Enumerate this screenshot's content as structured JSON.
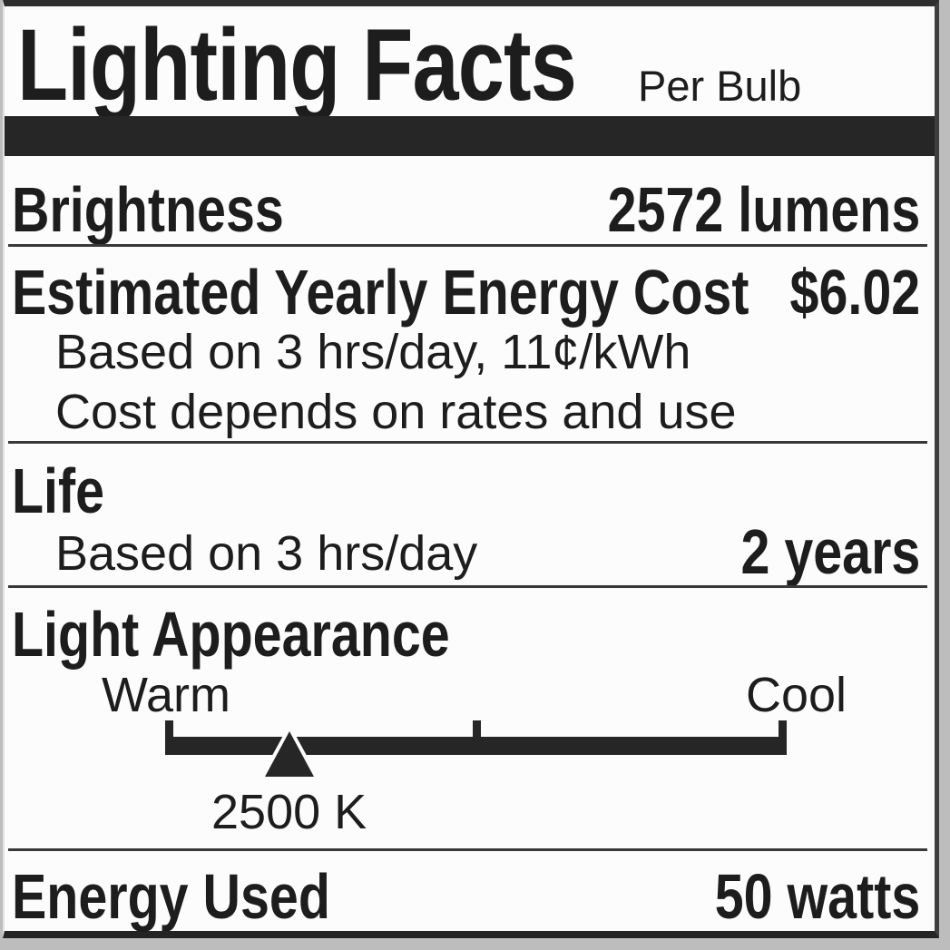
{
  "label": {
    "title": "Lighting Facts",
    "subtitle": "Per Bulb",
    "brightness": {
      "label": "Brightness",
      "value": "2572 lumens"
    },
    "energy_cost": {
      "label": "Estimated Yearly Energy Cost",
      "value": "$6.02",
      "note_basis": "Based on 3 hrs/day, 11¢/kWh",
      "note_disclaimer": "Cost depends on rates and use"
    },
    "life": {
      "label": "Life",
      "note": "Based on 3 hrs/day",
      "value": "2 years"
    },
    "light_appearance": {
      "label": "Light Appearance",
      "warm": "Warm",
      "cool": "Cool",
      "kelvin": "2500 K"
    },
    "energy_used": {
      "label": "Energy Used",
      "value": "50 watts"
    },
    "colors": {
      "ink": "#1d1d1d",
      "bar": "#262626",
      "label_bg": "#fcfcfc",
      "photo_bg": "#bdbdbd"
    }
  }
}
